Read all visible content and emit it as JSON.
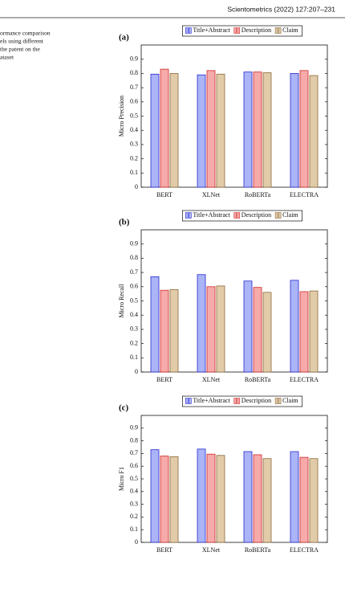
{
  "header": {
    "journal": "Scientometrics (2022) 127:207–231"
  },
  "caption_lines": [
    "ormance comparison",
    "els using different",
    "the patent on the",
    "ataset"
  ],
  "chart_data": [
    {
      "type": "bar",
      "panel_label": "(a)",
      "y_label": "Micro Precision",
      "categories": [
        "BERT",
        "XLNet",
        "RoBERTa",
        "ELECTRA"
      ],
      "series": [
        {
          "name": "Title+Abstract",
          "color": "#aab4f6",
          "edge": "#2a2ad0",
          "values": [
            0.795,
            0.79,
            0.81,
            0.8
          ]
        },
        {
          "name": "Description",
          "color": "#f6aaaa",
          "edge": "#d02a2a",
          "values": [
            0.83,
            0.82,
            0.81,
            0.82
          ]
        },
        {
          "name": "Claim",
          "color": "#e2cba8",
          "edge": "#8a6a3c",
          "values": [
            0.8,
            0.795,
            0.805,
            0.785
          ]
        }
      ],
      "ylim": [
        0,
        1
      ],
      "yticks": [
        0,
        0.1,
        0.2,
        0.3,
        0.4,
        0.5,
        0.6,
        0.7,
        0.8,
        0.9
      ],
      "grid": false,
      "legend": "top"
    },
    {
      "type": "bar",
      "panel_label": "(b)",
      "y_label": "Micro Recall",
      "categories": [
        "BERT",
        "XLNet",
        "RoBERTa",
        "ELECTRA"
      ],
      "series": [
        {
          "name": "Title+Abstract",
          "color": "#aab4f6",
          "edge": "#2a2ad0",
          "values": [
            0.67,
            0.685,
            0.64,
            0.645
          ]
        },
        {
          "name": "Description",
          "color": "#f6aaaa",
          "edge": "#d02a2a",
          "values": [
            0.575,
            0.6,
            0.595,
            0.565
          ]
        },
        {
          "name": "Claim",
          "color": "#e2cba8",
          "edge": "#8a6a3c",
          "values": [
            0.58,
            0.605,
            0.56,
            0.57
          ]
        }
      ],
      "ylim": [
        0,
        1
      ],
      "yticks": [
        0,
        0.1,
        0.2,
        0.3,
        0.4,
        0.5,
        0.6,
        0.7,
        0.8,
        0.9
      ],
      "grid": false,
      "legend": "top"
    },
    {
      "type": "bar",
      "panel_label": "(c)",
      "y_label": "Micro F1",
      "categories": [
        "BERT",
        "XLNet",
        "RoBERTa",
        "ELECTRA"
      ],
      "series": [
        {
          "name": "Title+Abstract",
          "color": "#aab4f6",
          "edge": "#2a2ad0",
          "values": [
            0.73,
            0.735,
            0.715,
            0.715
          ]
        },
        {
          "name": "Description",
          "color": "#f6aaaa",
          "edge": "#d02a2a",
          "values": [
            0.68,
            0.695,
            0.69,
            0.67
          ]
        },
        {
          "name": "Claim",
          "color": "#e2cba8",
          "edge": "#8a6a3c",
          "values": [
            0.675,
            0.685,
            0.66,
            0.66
          ]
        }
      ],
      "ylim": [
        0,
        1
      ],
      "yticks": [
        0,
        0.1,
        0.2,
        0.3,
        0.4,
        0.5,
        0.6,
        0.7,
        0.8,
        0.9
      ],
      "grid": false,
      "legend": "top"
    }
  ]
}
